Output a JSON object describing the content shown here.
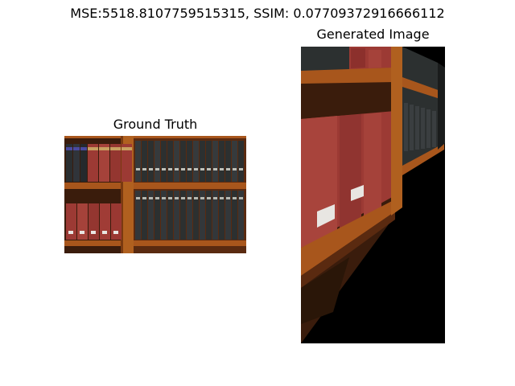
{
  "figure": {
    "title": "MSE:5518.8107759515315, SSIM: 0.07709372916666112"
  },
  "panels": [
    {
      "title": "Ground Truth",
      "image": "bookshelf-photo"
    },
    {
      "title": "Generated Image",
      "image": "warped-bookshelf-photo"
    }
  ],
  "colors": {
    "wood": "#a8561c",
    "wood_dark": "#6b2f0c",
    "red_book": "#9c3a34",
    "dark_book": "#2c3030",
    "background": "#000000"
  }
}
